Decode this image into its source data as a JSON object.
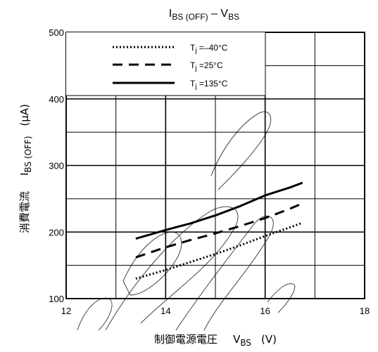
{
  "chart_data": {
    "type": "line",
    "title": {
      "main": "I",
      "sub": "BS (OFF)",
      "dash": " – V",
      "sub2": "BS"
    },
    "xlabel": {
      "jp": "制御電源電圧",
      "sym": "V",
      "sub": "BS",
      "unit": "(V)"
    },
    "ylabel": {
      "jp": "消費電流",
      "sym": "I",
      "sub": "BS (OFF)",
      "unit": "(µA)"
    },
    "xlim": [
      12,
      18
    ],
    "ylim": [
      100,
      500
    ],
    "x_ticks": [
      12,
      14,
      16,
      18
    ],
    "y_ticks": [
      100,
      200,
      300,
      400,
      500
    ],
    "grid": true,
    "legend_position": "top-left",
    "series": [
      {
        "name": "T",
        "name_sub": "j",
        "name_rest": " =–40°C",
        "style": "dotted",
        "x": [
          13.4,
          14.0,
          14.5,
          15.0,
          15.5,
          16.0,
          16.5,
          16.75
        ],
        "y": [
          130,
          143,
          155,
          167,
          180,
          194,
          207,
          214
        ]
      },
      {
        "name": "T",
        "name_sub": "j",
        "name_rest": " =25°C",
        "style": "dashed",
        "x": [
          13.4,
          14.0,
          14.5,
          15.0,
          15.5,
          16.0,
          16.5,
          16.75
        ],
        "y": [
          162,
          177,
          188,
          198,
          209,
          221,
          235,
          243
        ]
      },
      {
        "name": "T",
        "name_sub": "j",
        "name_rest": " =135°C",
        "style": "solid",
        "x": [
          13.4,
          14.0,
          14.5,
          15.0,
          15.5,
          16.0,
          16.5,
          16.75
        ],
        "y": [
          190,
          203,
          213,
          225,
          239,
          255,
          267,
          274
        ]
      }
    ]
  }
}
